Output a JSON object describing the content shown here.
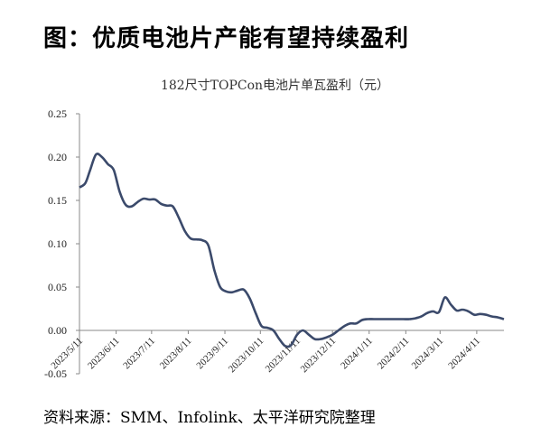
{
  "page_title": "图：优质电池片产能有望持续盈利",
  "source_note": "资料来源：SMM、Infolink、太平洋研究院整理",
  "chart_data": {
    "type": "line",
    "title": "182尺寸TOPCon电池片单瓦盈利（元）",
    "xlabel": "",
    "ylabel": "",
    "ylim": [
      -0.05,
      0.25
    ],
    "yticks": [
      "-0.05",
      "0.00",
      "0.05",
      "0.10",
      "0.15",
      "0.20",
      "0.25"
    ],
    "xtick_labels": [
      "2023/5/11",
      "2023/6/11",
      "2023/7/11",
      "2023/8/11",
      "2023/9/11",
      "2023/10/11",
      "2023/11/11",
      "2023/12/11",
      "2024/1/11",
      "2024/2/11",
      "2024/3/11",
      "2024/4/11"
    ],
    "grid": false,
    "legend": "none",
    "line_color": "#3b4a6b",
    "series": [
      {
        "x": [
          "2023-05-11",
          "2023-05-16",
          "2023-05-20",
          "2023-05-25",
          "2023-05-30",
          "2023-06-04",
          "2023-06-09",
          "2023-06-14",
          "2023-06-19",
          "2023-06-24",
          "2023-06-29",
          "2023-07-04",
          "2023-07-09",
          "2023-07-14",
          "2023-07-19",
          "2023-07-24",
          "2023-07-29",
          "2023-08-03",
          "2023-08-08",
          "2023-08-13",
          "2023-08-18",
          "2023-08-23",
          "2023-08-28",
          "2023-09-02",
          "2023-09-07",
          "2023-09-12",
          "2023-09-17",
          "2023-09-22",
          "2023-09-27",
          "2023-10-02",
          "2023-10-07",
          "2023-10-12",
          "2023-10-17",
          "2023-10-22",
          "2023-10-27",
          "2023-11-01",
          "2023-11-06",
          "2023-11-11",
          "2023-11-16",
          "2023-11-21",
          "2023-11-26",
          "2023-12-01",
          "2023-12-06",
          "2023-12-11",
          "2023-12-16",
          "2023-12-21",
          "2023-12-26",
          "2023-12-31",
          "2024-01-05",
          "2024-01-10",
          "2024-01-15",
          "2024-01-20",
          "2024-01-25",
          "2024-01-30",
          "2024-02-04",
          "2024-02-09",
          "2024-02-14",
          "2024-02-19",
          "2024-02-24",
          "2024-02-29",
          "2024-03-05",
          "2024-03-10",
          "2024-03-15",
          "2024-03-20",
          "2024-03-25",
          "2024-03-30",
          "2024-04-04",
          "2024-04-09",
          "2024-04-14",
          "2024-04-19",
          "2024-04-24",
          "2024-04-29",
          "2024-05-04"
        ],
        "values": [
          0.165,
          0.17,
          0.185,
          0.203,
          0.2,
          0.192,
          0.185,
          0.16,
          0.145,
          0.143,
          0.148,
          0.152,
          0.151,
          0.151,
          0.146,
          0.144,
          0.143,
          0.13,
          0.115,
          0.106,
          0.105,
          0.104,
          0.098,
          0.07,
          0.05,
          0.045,
          0.044,
          0.046,
          0.047,
          0.037,
          0.02,
          0.005,
          0.003,
          0.0,
          -0.01,
          -0.018,
          -0.017,
          -0.005,
          0.0,
          -0.005,
          -0.01,
          -0.01,
          -0.008,
          -0.005,
          0.0,
          0.005,
          0.008,
          0.008,
          0.012,
          0.013,
          0.013,
          0.013,
          0.013,
          0.013,
          0.013,
          0.013,
          0.013,
          0.014,
          0.016,
          0.02,
          0.022,
          0.021,
          0.038,
          0.03,
          0.023,
          0.024,
          0.022,
          0.018,
          0.019,
          0.018,
          0.016,
          0.015,
          0.013
        ]
      }
    ]
  }
}
